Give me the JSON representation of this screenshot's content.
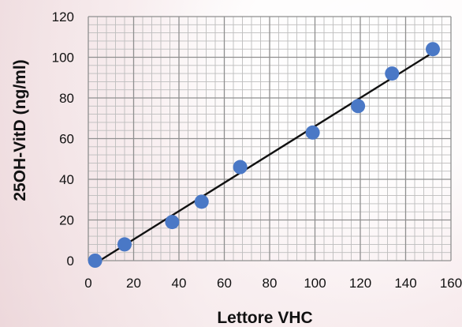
{
  "chart_data": {
    "type": "scatter",
    "xlabel": "Lettore VHC",
    "ylabel": "25OH-VitD (ng/ml)",
    "xlim": [
      0,
      160
    ],
    "ylim": [
      0,
      120
    ],
    "x_ticks": [
      0,
      20,
      40,
      60,
      80,
      100,
      120,
      140,
      160
    ],
    "y_ticks": [
      0,
      20,
      40,
      60,
      80,
      100,
      120
    ],
    "grid": true,
    "legend": "none",
    "series": [
      {
        "points": [
          {
            "x": 3,
            "y": 0
          },
          {
            "x": 16,
            "y": 8
          },
          {
            "x": 37,
            "y": 19
          },
          {
            "x": 50,
            "y": 29
          },
          {
            "x": 67,
            "y": 46
          },
          {
            "x": 99,
            "y": 63
          },
          {
            "x": 119,
            "y": 76
          },
          {
            "x": 134,
            "y": 92
          },
          {
            "x": 152,
            "y": 104
          }
        ]
      }
    ],
    "trendline": {
      "start": {
        "x": 5,
        "y": 0
      },
      "end": {
        "x": 153,
        "y": 103
      }
    },
    "colors": {
      "marker": "#4a78c6",
      "line": "#111111",
      "grid_major": "#8f8f8f",
      "grid_minor": "#bdbdbd"
    }
  }
}
